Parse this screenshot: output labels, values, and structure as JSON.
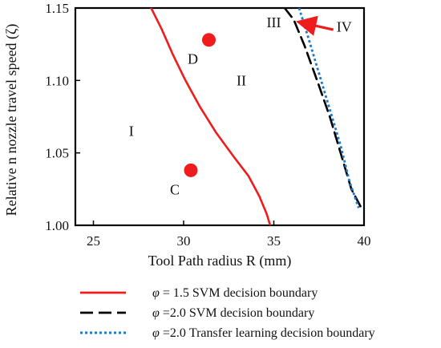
{
  "chart_data": {
    "type": "line",
    "xlabel": "Tool Path radius R (mm)",
    "ylabel": "Relative n nozzle travel speed (ζ)",
    "xlim": [
      24,
      40
    ],
    "ylim": [
      1.0,
      1.15
    ],
    "xticks": [
      25,
      30,
      35,
      40
    ],
    "yticks": [
      1.0,
      1.05,
      1.1,
      1.15
    ],
    "x_tick_labels": [
      "25",
      "30",
      "35",
      "40"
    ],
    "y_tick_labels": [
      "1.00",
      "1.05",
      "1.10",
      "1.15"
    ],
    "grid": false,
    "legend_position": "bottom",
    "series": [
      {
        "name": "1.5 SVM decision boundary",
        "legend_prefix": "φ = ",
        "color": "#ee1c1c",
        "style": "solid",
        "x": [
          28.2,
          28.8,
          29.4,
          30.1,
          30.9,
          31.8,
          32.8,
          33.6,
          34.2,
          34.6,
          34.8
        ],
        "y": [
          1.15,
          1.135,
          1.118,
          1.1,
          1.082,
          1.064,
          1.047,
          1.034,
          1.02,
          1.008,
          1.0
        ]
      },
      {
        "name": "2.0 SVM decision boundary",
        "legend_prefix": "φ =",
        "color": "#000000",
        "style": "dashed",
        "x": [
          35.6,
          36.1,
          36.7,
          37.4,
          38.1,
          38.7,
          39.3,
          39.85
        ],
        "y": [
          1.15,
          1.142,
          1.124,
          1.1,
          1.075,
          1.05,
          1.025,
          1.012
        ]
      },
      {
        "name": "2.0 Transfer learning decision boundary",
        "legend_prefix": "φ =",
        "color": "#1f78c8",
        "style": "dotted",
        "x": [
          36.4,
          36.9,
          37.5,
          38.1,
          38.7,
          39.2,
          39.7
        ],
        "y": [
          1.15,
          1.13,
          1.105,
          1.08,
          1.055,
          1.03,
          1.012
        ]
      }
    ],
    "points": [
      {
        "label": "D",
        "x": 31.4,
        "y": 1.128,
        "color": "#ee1c1c"
      },
      {
        "label": "C",
        "x": 30.4,
        "y": 1.038,
        "color": "#ee1c1c"
      }
    ],
    "region_labels": [
      {
        "label": "I",
        "x": 27.1,
        "y": 1.065
      },
      {
        "label": "II",
        "x": 33.2,
        "y": 1.1
      },
      {
        "label": "III",
        "x": 35.0,
        "y": 1.14
      },
      {
        "label": "IV",
        "x": 38.9,
        "y": 1.137
      }
    ],
    "annotation_arrow": {
      "color": "#ee1c1c",
      "from": [
        38.3,
        1.135
      ],
      "to": [
        36.5,
        1.14
      ]
    }
  }
}
